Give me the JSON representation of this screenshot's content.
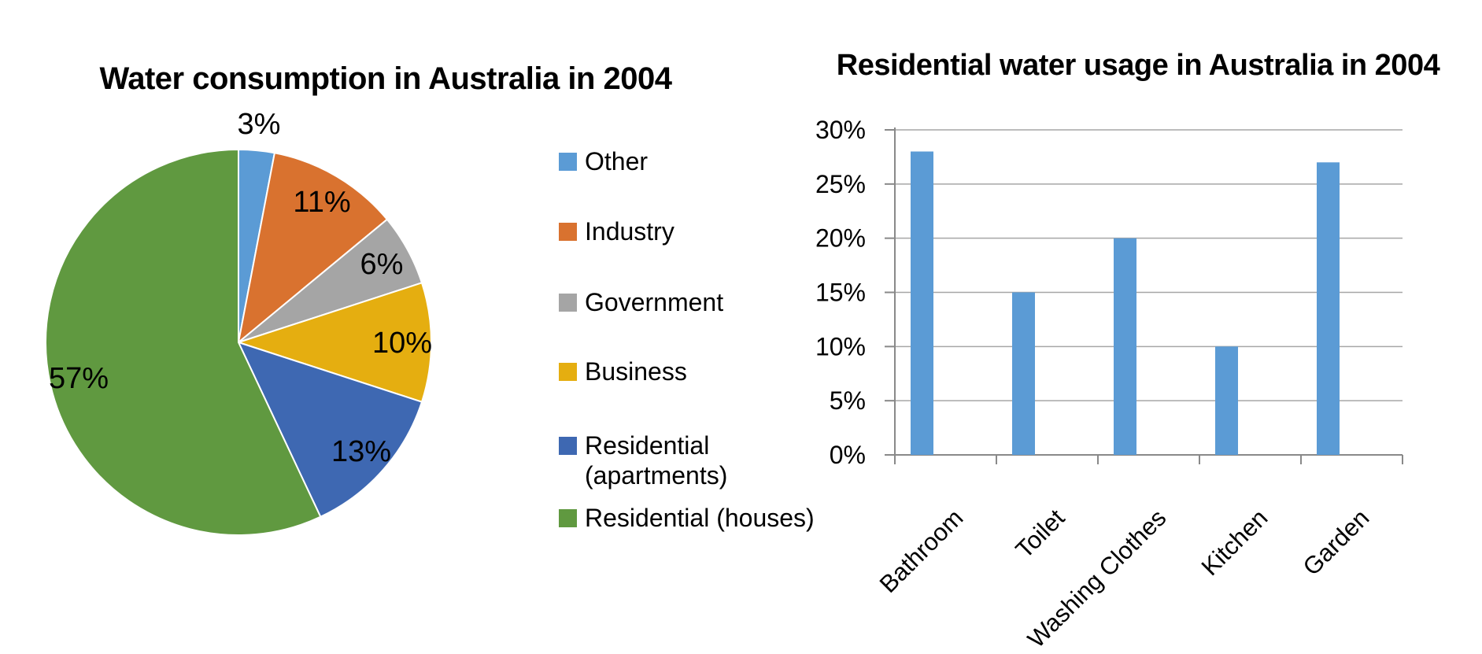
{
  "page": {
    "background": "#FFFFFF"
  },
  "chart_data": [
    {
      "type": "pie",
      "title": "Water consumption in Australia in 2004",
      "slices": [
        {
          "label": "Other",
          "value": 3,
          "color": "#5B9BD5"
        },
        {
          "label": "Industry",
          "value": 11,
          "color": "#D9722F"
        },
        {
          "label": "Government",
          "value": 6,
          "color": "#A5A5A5"
        },
        {
          "label": "Business",
          "value": 10,
          "color": "#E5AE10"
        },
        {
          "label": "Residential (apartments)",
          "value": 13,
          "color": "#3E68B2"
        },
        {
          "label": "Residential (houses)",
          "value": 57,
          "color": "#609940"
        }
      ],
      "data_labels": [
        "3%",
        "11%",
        "6%",
        "10%",
        "13%",
        "57%"
      ],
      "start_angle_deg": 0,
      "direction": "clockwise",
      "legend_position": "right"
    },
    {
      "type": "bar",
      "title": "Residential water usage in Australia in 2004",
      "categories": [
        "Bathroom",
        "Toilet",
        "Washing Clothes",
        "Kitchen",
        "Garden"
      ],
      "values": [
        28,
        15,
        20,
        10,
        27
      ],
      "unit": "%",
      "bar_color": "#5B9BD5",
      "ylim": [
        0,
        30
      ],
      "ytick_step": 5,
      "ytick_labels": [
        "30%",
        "25%",
        "20%",
        "15%",
        "10%",
        "5%",
        "0%"
      ],
      "xtick_rotation_deg": 45,
      "grid": true,
      "xlabel": "",
      "ylabel": ""
    }
  ]
}
